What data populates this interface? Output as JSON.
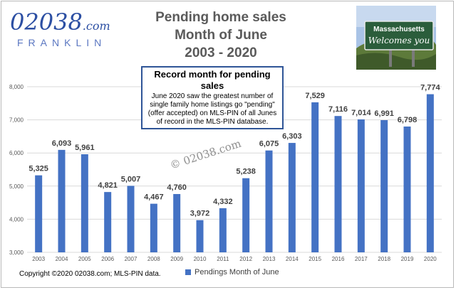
{
  "logo": {
    "main": "02038",
    "com": ".com",
    "sub": "FRANKLIN"
  },
  "title_lines": [
    "Pending home sales",
    "Month of June",
    "2003 - 2020"
  ],
  "sign": {
    "line1": "Massachusetts",
    "line2": "Welcomes you"
  },
  "watermark": "© 02038.com",
  "callout": {
    "title": "Record month for pending sales",
    "body": "June 2020 saw the greatest number of single family home listings go \"pending\" (offer accepted)  on MLS-PIN of all Junes of record in the MLS-PIN database."
  },
  "copyright": "Copyright ©2020  02038.com; MLS-PIN data.",
  "colors": {
    "bar": "#4472c4",
    "grid": "#d9d9d9",
    "title": "#5a5a5a",
    "logo": "#2c4fa3"
  },
  "chart_data": {
    "type": "bar",
    "title": "Pending home sales Month of June 2003 - 2020",
    "categories": [
      "2003",
      "2004",
      "2005",
      "2006",
      "2007",
      "2008",
      "2009",
      "2010",
      "2011",
      "2012",
      "2013",
      "2014",
      "2015",
      "2016",
      "2017",
      "2018",
      "2019",
      "2020"
    ],
    "series": [
      {
        "name": "Pendings Month of June",
        "values": [
          5325,
          6093,
          5961,
          4821,
          5007,
          4467,
          4760,
          3972,
          4332,
          5238,
          6075,
          6303,
          7529,
          7116,
          7014,
          6991,
          6798,
          7774
        ]
      }
    ],
    "value_labels": [
      "5,325",
      "6,093",
      "5,961",
      "4,821",
      "5,007",
      "4,467",
      "4,760",
      "3,972",
      "4,332",
      "5,238",
      "6,075",
      "6,303",
      "7,529",
      "7,116",
      "7,014",
      "6,991",
      "6,798",
      "7,774"
    ],
    "ylim": [
      3000,
      8000
    ],
    "yticks": [
      3000,
      4000,
      5000,
      6000,
      7000,
      8000
    ],
    "ytick_labels": [
      "3,000",
      "4,000",
      "5,000",
      "6,000",
      "7,000",
      "8,000"
    ],
    "grid": true,
    "legend_position": "bottom"
  }
}
